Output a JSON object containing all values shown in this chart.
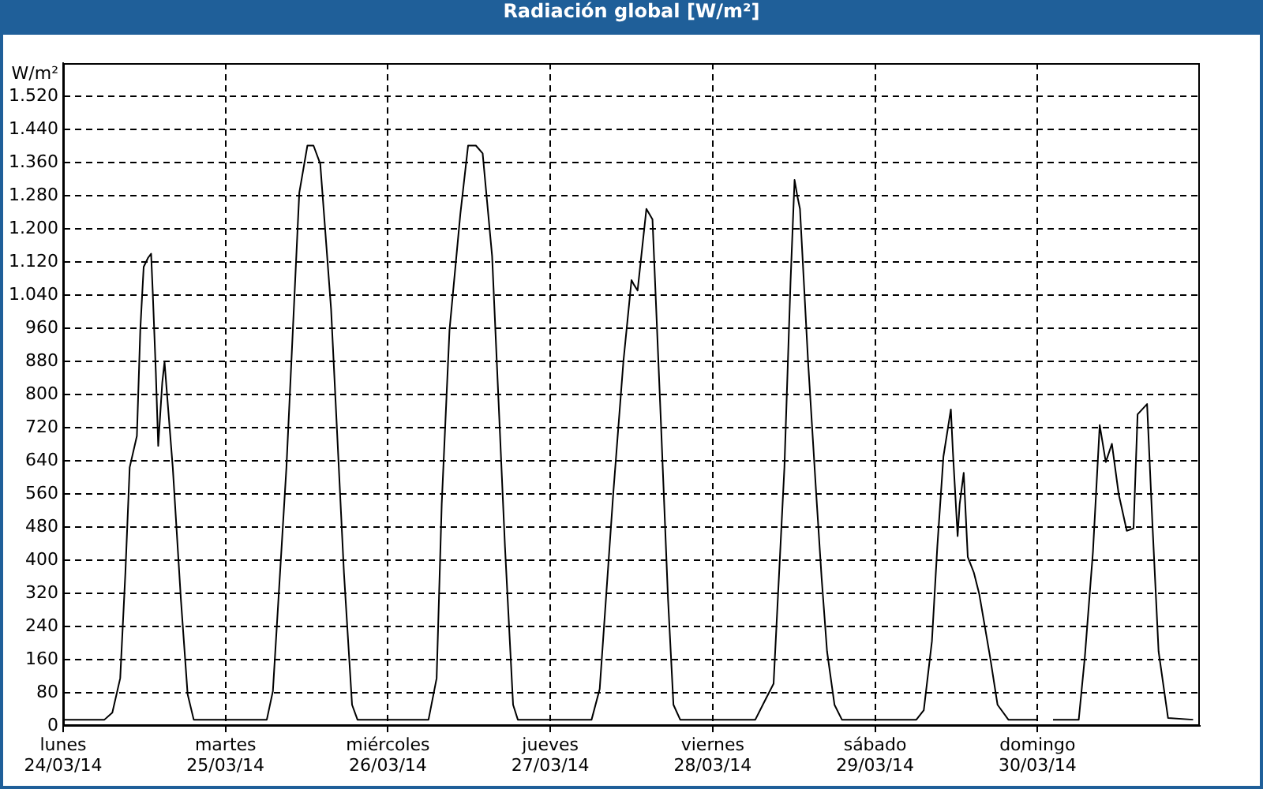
{
  "chart_data": {
    "type": "line",
    "title": "Radiación global [W/m²]",
    "ylabel": "W/m²",
    "x": [
      "--03-24T00:00",
      "--03-24T06:06",
      "--03-24T07:16",
      "--03-24T08:26",
      "--03-24T09:12",
      "--03-24T09:50",
      "--03-24T10:54",
      "--03-24T11:24",
      "--03-24T11:54",
      "--03-24T12:33",
      "--03-24T13:00",
      "--03-24T13:15",
      "--03-24T13:42",
      "--03-24T14:03",
      "--03-24T14:39",
      "--03-24T14:59",
      "--03-24T15:17",
      "--03-24T16:12",
      "--03-24T17:24",
      "--03-24T18:24",
      "--03-24T19:18",
      "--03-25T06:06",
      "--03-25T07:00",
      "--03-25T09:00",
      "--03-25T10:54",
      "--03-25T12:06",
      "--03-25T13:00",
      "--03-25T14:00",
      "--03-25T15:36",
      "--03-25T17:30",
      "--03-25T18:42",
      "--03-25T19:30",
      "--03-26T06:00",
      "--03-26T07:12",
      "--03-26T07:57",
      "--03-26T09:06",
      "--03-26T10:42",
      "--03-26T11:51",
      "--03-26T13:00",
      "--03-26T14:00",
      "--03-26T15:24",
      "--03-26T17:18",
      "--03-26T18:30",
      "--03-26T19:12",
      "--03-27T06:06",
      "--03-27T07:18",
      "--03-27T09:18",
      "--03-27T10:48",
      "--03-27T12:00",
      "--03-27T12:24",
      "--03-27T12:54",
      "--03-27T14:12",
      "--03-27T15:06",
      "--03-27T16:18",
      "--03-27T17:24",
      "--03-27T18:12",
      "--03-27T19:12",
      "--03-28T06:18",
      "--03-28T07:36",
      "--03-28T09:00",
      "--03-28T10:36",
      "--03-28T11:30",
      "--03-28T12:06",
      "--03-28T12:30",
      "--03-28T12:54",
      "--03-28T14:06",
      "--03-28T15:18",
      "--03-28T16:06",
      "--03-28T16:54",
      "--03-28T18:00",
      "--03-28T19:06",
      "--03-29T06:06",
      "--03-29T07:12",
      "--03-29T08:24",
      "--03-29T09:12",
      "--03-29T10:06",
      "--03-29T11:12",
      "--03-29T11:30",
      "--03-29T12:12",
      "--03-29T12:30",
      "--03-29T13:06",
      "--03-29T13:42",
      "--03-29T14:36",
      "--03-29T15:24",
      "--03-29T17:00",
      "--03-29T18:06",
      "--03-29T19:42",
      "--03-30T00:00",
      "--03-30T01:00",
      "--03-30T02:18",
      "--03-30T06:06",
      "--03-30T07:00",
      "--03-30T08:12",
      "--03-30T09:12",
      "--03-30T10:06",
      "--03-30T11:00",
      "--03-30T12:00",
      "--03-30T13:12",
      "--03-30T14:12",
      "--03-30T14:48",
      "--03-30T16:12",
      "--03-30T17:00",
      "--03-30T17:54",
      "--03-30T19:18",
      "--03-30T23:00"
    ],
    "series": [
      {
        "color": "#000000",
        "values": [
          15,
          15,
          32,
          115,
          370,
          624,
          700,
          955,
          1108,
          1130,
          1140,
          1044,
          853,
          676,
          829,
          879,
          815,
          624,
          306,
          76,
          15,
          15,
          84,
          624,
          1287,
          1401,
          1401,
          1357,
          1006,
          370,
          51,
          15,
          15,
          115,
          535,
          955,
          1235,
          1401,
          1401,
          1382,
          1134,
          433,
          51,
          15,
          15,
          89,
          560,
          879,
          1076,
          1064,
          1051,
          1248,
          1223,
          752,
          306,
          51,
          15,
          15,
          57,
          102,
          624,
          1070,
          1318,
          1280,
          1248,
          879,
          560,
          357,
          180,
          51,
          15,
          15,
          38,
          204,
          433,
          650,
          764,
          662,
          458,
          535,
          611,
          408,
          370,
          318,
          166,
          51,
          15,
          15,
          null,
          15,
          15,
          166,
          420,
          726,
          637,
          681,
          560,
          471,
          477,
          752,
          777,
          484,
          180,
          19,
          15
        ]
      }
    ],
    "xlim": [
      "--03-24",
      "--03-31"
    ],
    "xticks": [
      {
        "value": "--03-24",
        "label": "lunes\n24/03/14"
      },
      {
        "value": "--03-25",
        "label": "martes\n25/03/14"
      },
      {
        "value": "--03-26",
        "label": "miércoles\n26/03/14"
      },
      {
        "value": "--03-27",
        "label": "jueves\n27/03/14"
      },
      {
        "value": "--03-28",
        "label": "viernes\n28/03/14"
      },
      {
        "value": "--03-29",
        "label": "sábado\n29/03/14"
      },
      {
        "value": "--03-30",
        "label": "domingo\n30/03/14"
      }
    ],
    "ylim": [
      0,
      1600
    ],
    "yticks": [
      0,
      80,
      160,
      240,
      320,
      400,
      480,
      560,
      640,
      720,
      800,
      880,
      960,
      {
        "value": 1040,
        "label": "1.040"
      },
      {
        "value": 1120,
        "label": "1.120"
      },
      {
        "value": 1200,
        "label": "1.200"
      },
      {
        "value": 1280,
        "label": "1.280"
      },
      {
        "value": 1360,
        "label": "1.360"
      },
      {
        "value": 1440,
        "label": "1.440"
      },
      {
        "value": 1520,
        "label": "1.520"
      }
    ],
    "grid": true,
    "legend": false,
    "marker": "none",
    "line_style": "solid"
  }
}
